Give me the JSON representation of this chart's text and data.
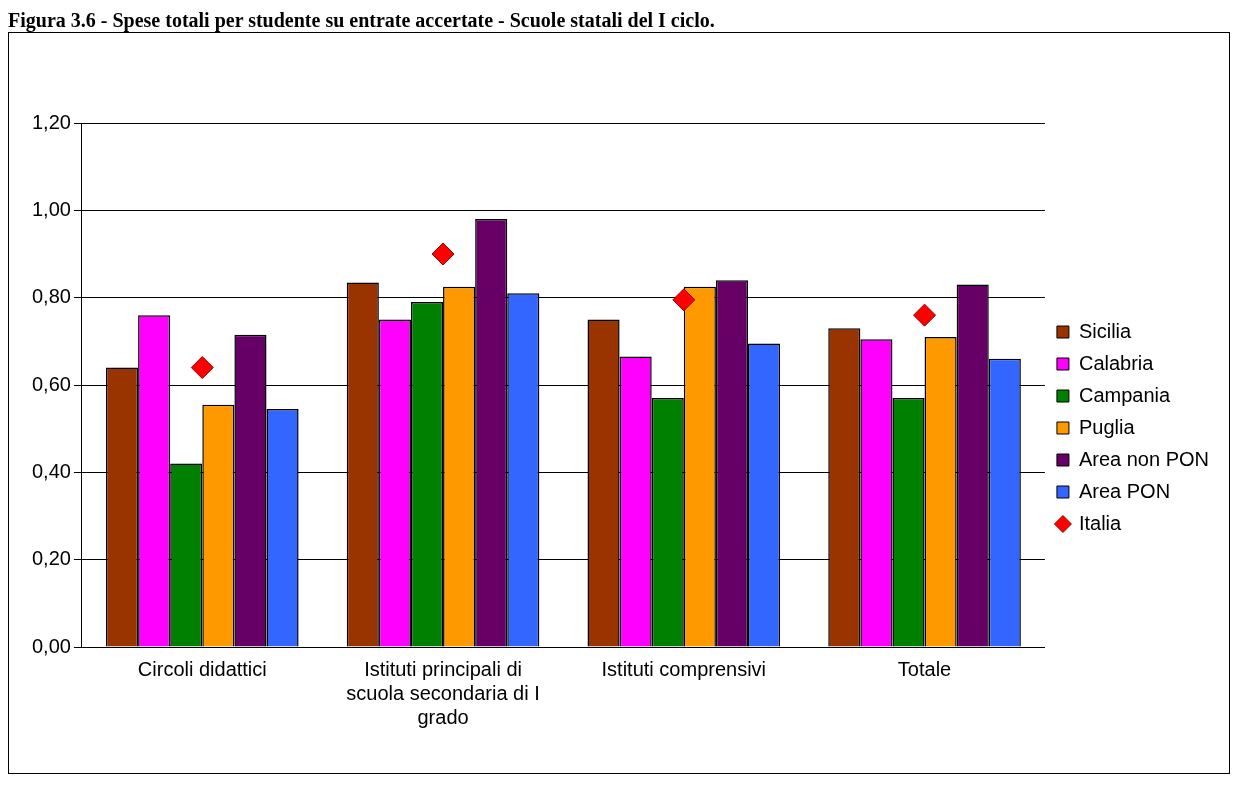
{
  "chart_data": {
    "type": "bar",
    "title": "Figura 3.6 - Spese totali per studente su entrate accertate - Scuole statali del I ciclo.",
    "categories": [
      "Circoli didattici",
      "Istituti principali di scuola secondaria di I grado",
      "Istituti comprensivi",
      "Totale"
    ],
    "series": [
      {
        "name": "Sicilia",
        "color": "#993300",
        "values": [
          0.64,
          0.835,
          0.75,
          0.73
        ]
      },
      {
        "name": "Calabria",
        "color": "#ff00ff",
        "values": [
          0.76,
          0.75,
          0.665,
          0.705
        ]
      },
      {
        "name": "Campania",
        "color": "#008000",
        "values": [
          0.42,
          0.79,
          0.57,
          0.57
        ]
      },
      {
        "name": "Puglia",
        "color": "#ff9900",
        "values": [
          0.555,
          0.825,
          0.825,
          0.71
        ]
      },
      {
        "name": "Area non PON",
        "color": "#660066",
        "values": [
          0.715,
          0.98,
          0.84,
          0.83
        ]
      },
      {
        "name": "Area PON",
        "color": "#3366ff",
        "values": [
          0.545,
          0.81,
          0.695,
          0.66
        ]
      },
      {
        "name": "Italia",
        "type": "scatter",
        "color": "#ff0000",
        "marker": "diamond",
        "values": [
          0.64,
          0.9,
          0.795,
          0.76
        ]
      }
    ],
    "ylim": [
      0,
      1.2
    ],
    "yticks": [
      {
        "value": 0,
        "label": "0,00"
      },
      {
        "value": 0.2,
        "label": "0,20"
      },
      {
        "value": 0.4,
        "label": "0,40"
      },
      {
        "value": 0.6,
        "label": "0,60"
      },
      {
        "value": 0.8,
        "label": "0,80"
      },
      {
        "value": 1,
        "label": "1,00"
      },
      {
        "value": 1.2,
        "label": "1,20"
      }
    ],
    "grid": "y",
    "legend": "right"
  }
}
